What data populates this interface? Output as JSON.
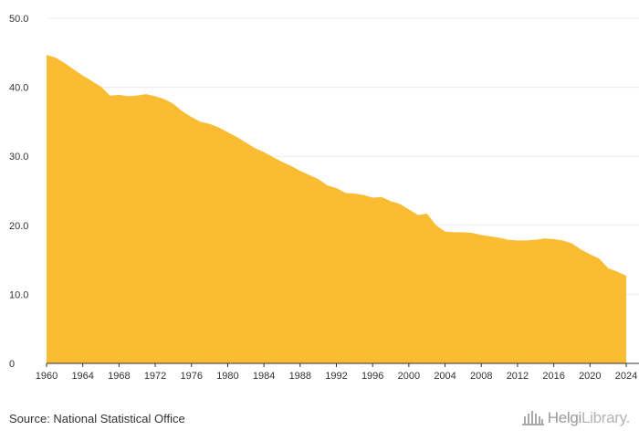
{
  "chart_data": {
    "type": "area",
    "title": "",
    "xlabel": "",
    "ylabel": "",
    "ylim": [
      0,
      50
    ],
    "xlim": [
      1960,
      2024
    ],
    "y_ticks": [
      "0",
      "10.0",
      "20.0",
      "30.0",
      "40.0",
      "50.0"
    ],
    "y_tick_values": [
      0,
      10,
      20,
      30,
      40,
      50
    ],
    "x_ticks": [
      "1960",
      "1964",
      "1968",
      "1972",
      "1976",
      "1980",
      "1984",
      "1988",
      "1992",
      "1996",
      "2000",
      "2004",
      "2008",
      "2012",
      "2016",
      "2020",
      "2024"
    ],
    "grid": true,
    "color": "#F9BC33",
    "series": [
      {
        "x": [
          1960,
          1961,
          1962,
          1963,
          1964,
          1965,
          1966,
          1967,
          1968,
          1969,
          1970,
          1971,
          1972,
          1973,
          1974,
          1975,
          1976,
          1977,
          1978,
          1979,
          1980,
          1981,
          1982,
          1983,
          1984,
          1985,
          1986,
          1987,
          1988,
          1989,
          1990,
          1991,
          1992,
          1993,
          1994,
          1995,
          1996,
          1997,
          1998,
          1999,
          2000,
          2001,
          2002,
          2003,
          2004,
          2005,
          2006,
          2007,
          2008,
          2009,
          2010,
          2011,
          2012,
          2013,
          2014,
          2015,
          2016,
          2017,
          2018,
          2019,
          2020,
          2021,
          2022,
          2023,
          2024
        ],
        "values": [
          44.7,
          44.3,
          43.5,
          42.6,
          41.7,
          40.9,
          40.1,
          38.8,
          38.9,
          38.7,
          38.8,
          39.0,
          38.7,
          38.3,
          37.6,
          36.5,
          35.7,
          35.0,
          34.7,
          34.2,
          33.5,
          32.8,
          32.0,
          31.2,
          30.6,
          29.9,
          29.2,
          28.6,
          27.9,
          27.3,
          26.7,
          25.8,
          25.4,
          24.7,
          24.6,
          24.4,
          24.0,
          24.1,
          23.5,
          23.1,
          22.3,
          21.5,
          21.7,
          20.0,
          19.1,
          19.0,
          19.0,
          18.9,
          18.6,
          18.4,
          18.2,
          17.9,
          17.8,
          17.8,
          17.9,
          18.1,
          18.0,
          17.8,
          17.4,
          16.5,
          15.8,
          15.2,
          13.8,
          13.3,
          12.7
        ]
      }
    ]
  },
  "footer": {
    "source_text": "Source: National Statistical Office",
    "brand_name_dark": "Helgi",
    "brand_name_light": "Library.",
    "brand_icon": "building-columns-icon"
  }
}
